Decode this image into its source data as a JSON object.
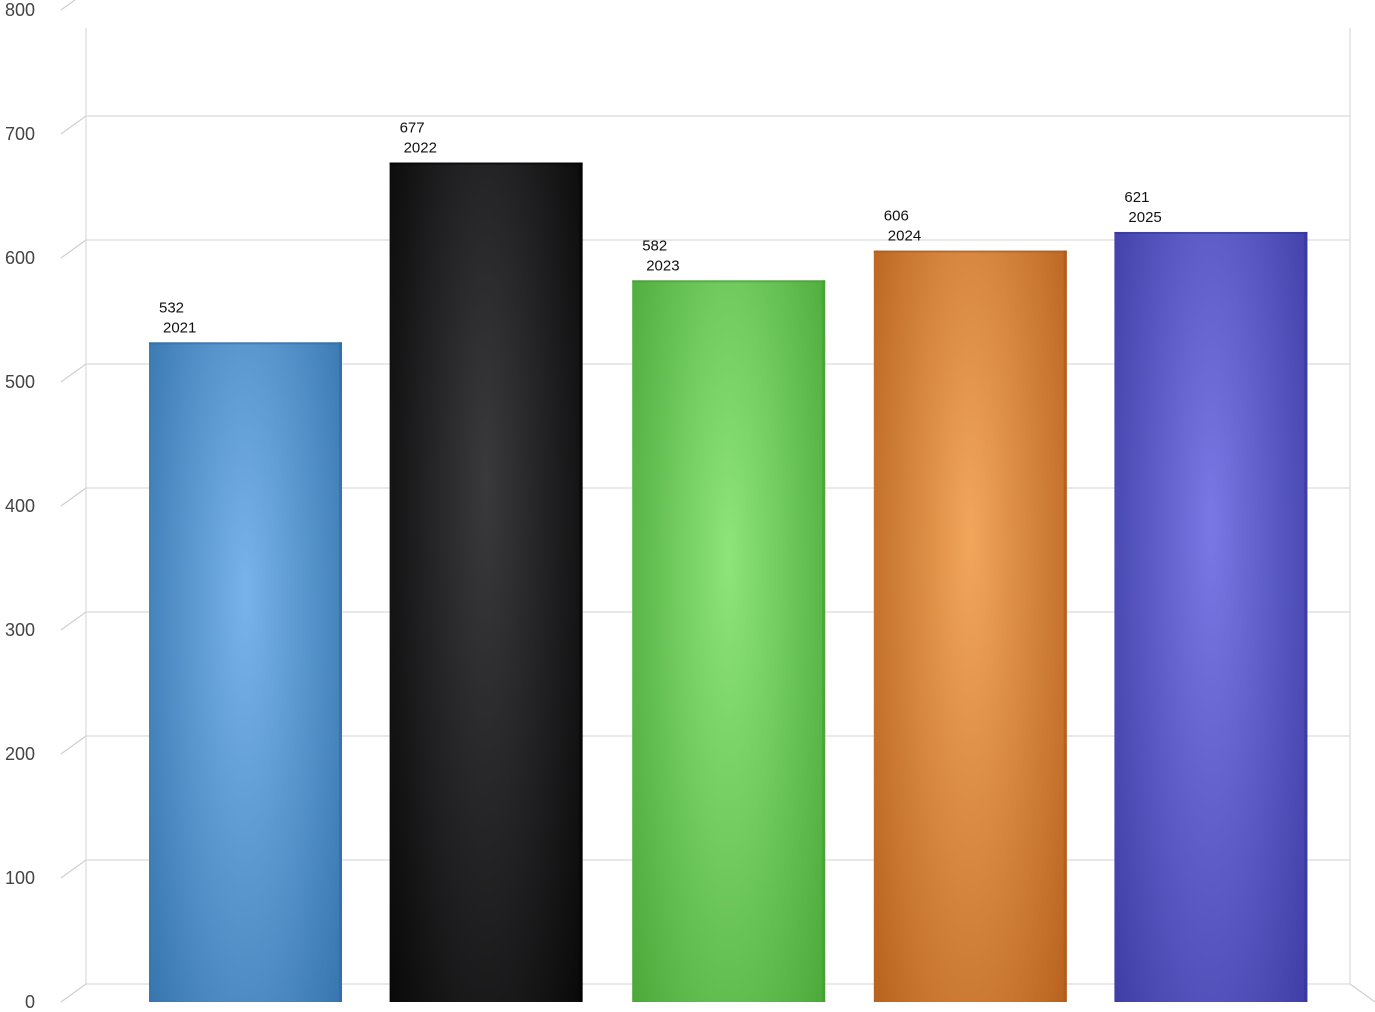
{
  "chart_data": {
    "type": "bar",
    "categories": [
      "2021",
      "2022",
      "2023",
      "2024",
      "2025"
    ],
    "values": [
      532,
      677,
      582,
      606,
      621
    ],
    "ylim": [
      0,
      800
    ],
    "yticks": [
      0,
      100,
      200,
      300,
      400,
      500,
      600,
      700,
      800
    ],
    "grid": true,
    "legend": "none",
    "colors": [
      {
        "light": "#78b4ea",
        "dark": "#2c6aa5"
      },
      {
        "light": "#3a393c",
        "dark": "#000000"
      },
      {
        "light": "#8ee57a",
        "dark": "#3f9e2e"
      },
      {
        "light": "#f2a65c",
        "dark": "#ad5714"
      },
      {
        "light": "#7a78e4",
        "dark": "#33339a"
      }
    ]
  }
}
